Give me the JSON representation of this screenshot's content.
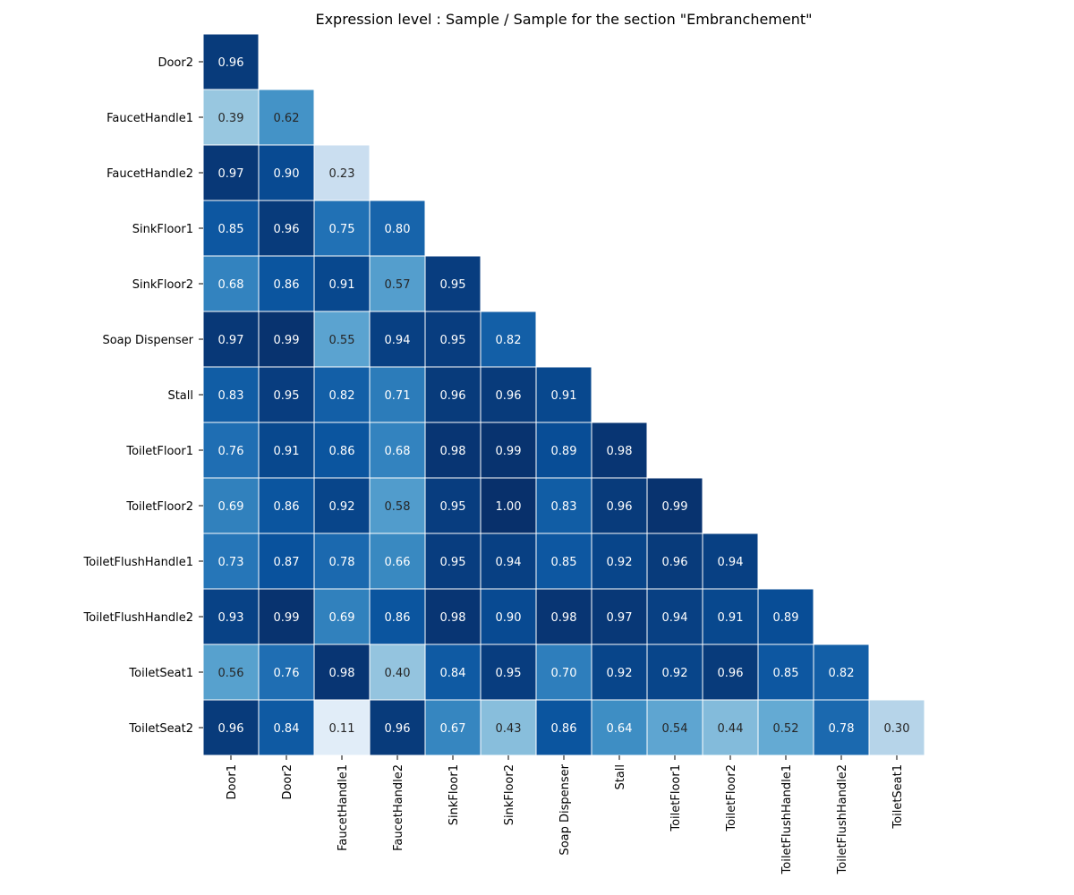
{
  "chart_data": {
    "type": "heatmap",
    "title": "Expression level : Sample / Sample for the section \"Embranchement\"",
    "colormap": [
      "#f7fbff",
      "#deebf7",
      "#c6dbef",
      "#9ecae1",
      "#6baed6",
      "#4292c6",
      "#2171b5",
      "#08519c",
      "#08306b"
    ],
    "value_range": [
      0,
      1
    ],
    "row_labels": [
      "Door2",
      "FaucetHandle1",
      "FaucetHandle2",
      "SinkFloor1",
      "SinkFloor2",
      "Soap Dispenser",
      "Stall",
      "ToiletFloor1",
      "ToiletFloor2",
      "ToiletFlushHandle1",
      "ToiletFlushHandle2",
      "ToiletSeat1",
      "ToiletSeat2"
    ],
    "col_labels": [
      "Door1",
      "Door2",
      "FaucetHandle1",
      "FaucetHandle2",
      "SinkFloor1",
      "SinkFloor2",
      "Soap Dispenser",
      "Stall",
      "ToiletFloor1",
      "ToiletFloor2",
      "ToiletFlushHandle1",
      "ToiletFlushHandle2",
      "ToiletSeat1"
    ],
    "values": [
      [
        0.96
      ],
      [
        0.39,
        0.62
      ],
      [
        0.97,
        0.9,
        0.23
      ],
      [
        0.85,
        0.96,
        0.75,
        0.8
      ],
      [
        0.68,
        0.86,
        0.91,
        0.57,
        0.95
      ],
      [
        0.97,
        0.99,
        0.55,
        0.94,
        0.95,
        0.82
      ],
      [
        0.83,
        0.95,
        0.82,
        0.71,
        0.96,
        0.96,
        0.91
      ],
      [
        0.76,
        0.91,
        0.86,
        0.68,
        0.98,
        0.99,
        0.89,
        0.98
      ],
      [
        0.69,
        0.86,
        0.92,
        0.58,
        0.95,
        1.0,
        0.83,
        0.96,
        0.99
      ],
      [
        0.73,
        0.87,
        0.78,
        0.66,
        0.95,
        0.94,
        0.85,
        0.92,
        0.96,
        0.94
      ],
      [
        0.93,
        0.99,
        0.69,
        0.86,
        0.98,
        0.9,
        0.98,
        0.97,
        0.94,
        0.91,
        0.89
      ],
      [
        0.56,
        0.76,
        0.98,
        0.4,
        0.84,
        0.95,
        0.7,
        0.92,
        0.92,
        0.96,
        0.85,
        0.82
      ],
      [
        0.96,
        0.84,
        0.11,
        0.96,
        0.67,
        0.43,
        0.86,
        0.64,
        0.54,
        0.44,
        0.52,
        0.78,
        0.3
      ]
    ]
  }
}
